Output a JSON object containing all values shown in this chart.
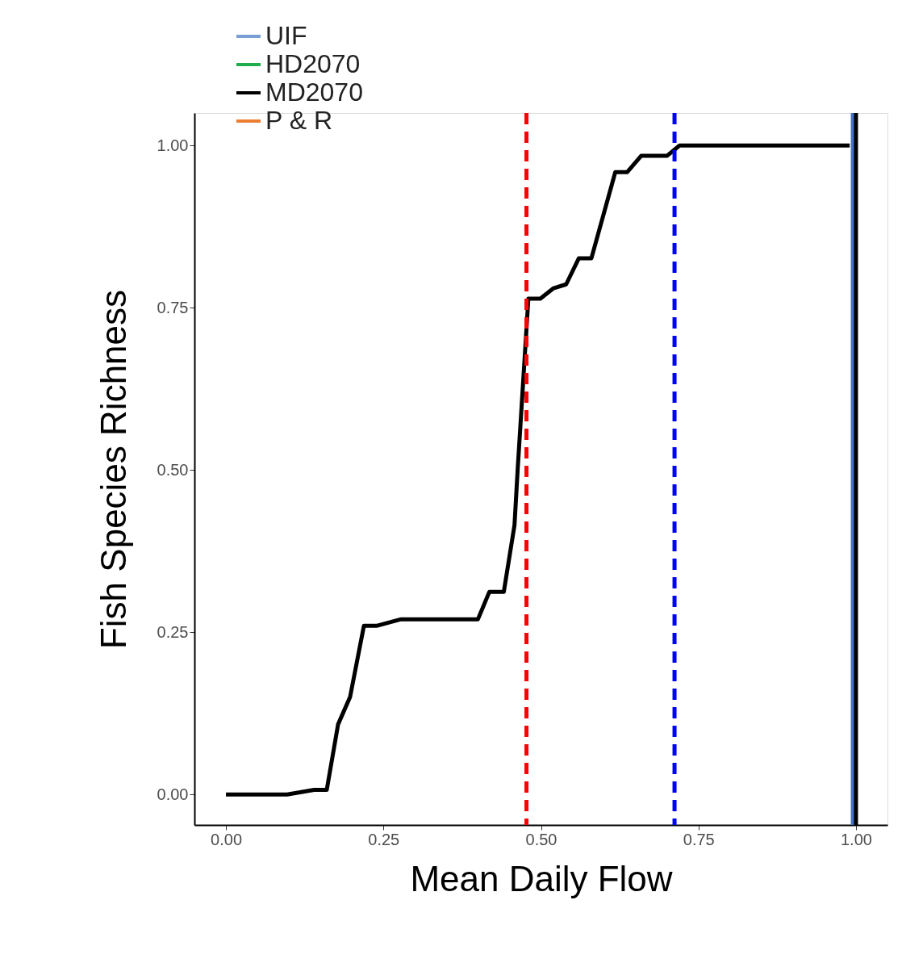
{
  "chart_data": {
    "type": "line",
    "xlabel": "Mean Daily Flow",
    "ylabel": "Fish Species Richness",
    "xlim": [
      -0.05,
      1.05
    ],
    "ylim": [
      -0.047,
      1.05
    ],
    "xticks": [
      {
        "value": 0,
        "label": "0.00"
      },
      {
        "value": 0.25,
        "label": "0.25"
      },
      {
        "value": 0.5,
        "label": "0.50"
      },
      {
        "value": 0.75,
        "label": "0.75"
      },
      {
        "value": 1,
        "label": "1.00"
      }
    ],
    "yticks": [
      {
        "value": 0,
        "label": "0.00"
      },
      {
        "value": 0.25,
        "label": "0.25"
      },
      {
        "value": 0.5,
        "label": "0.50"
      },
      {
        "value": 0.75,
        "label": "0.75"
      },
      {
        "value": 1,
        "label": "1.00"
      }
    ],
    "series": [
      {
        "name": "UIF",
        "color": "#7b9fd4"
      },
      {
        "name": "HD2070",
        "color": "#1fae4b"
      },
      {
        "name": "MD2070",
        "color": "#000000",
        "x": [
          0.0,
          0.097,
          0.14,
          0.16,
          0.178,
          0.197,
          0.219,
          0.24,
          0.278,
          0.4,
          0.418,
          0.441,
          0.458,
          0.463,
          0.48,
          0.499,
          0.52,
          0.54,
          0.56,
          0.58,
          0.618,
          0.637,
          0.659,
          0.7,
          0.72,
          0.99
        ],
        "values": [
          0.0,
          0.0,
          0.007,
          0.007,
          0.108,
          0.15,
          0.26,
          0.26,
          0.27,
          0.27,
          0.312,
          0.312,
          0.415,
          0.5,
          0.764,
          0.764,
          0.78,
          0.786,
          0.826,
          0.826,
          0.959,
          0.959,
          0.984,
          0.984,
          1.0,
          1.0
        ]
      },
      {
        "name": "P & R",
        "color": "#ed7d31"
      }
    ],
    "ref_lines": [
      {
        "axis": "x",
        "value": 0.477,
        "color": "#ff0000",
        "line_style": "dashed"
      },
      {
        "axis": "x",
        "value": 0.712,
        "color": "#0000ff",
        "line_style": "dashed"
      },
      {
        "axis": "x",
        "value": 0.995,
        "color": "#4472c4",
        "line_style": "solid"
      },
      {
        "axis": "x",
        "value": 1.0,
        "color": "#000000",
        "line_style": "solid"
      }
    ],
    "legend": "top left",
    "grid": false,
    "marker": "none",
    "line_style": "solid"
  }
}
